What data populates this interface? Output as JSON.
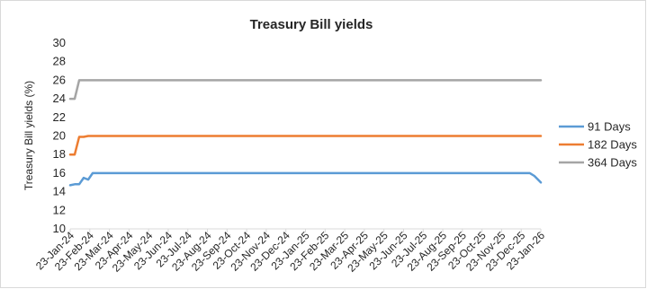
{
  "chart_data": {
    "type": "line",
    "title": "Treasury Bill yields",
    "xlabel": "",
    "ylabel": "Treasury Bill yields (%)",
    "ylim": [
      10,
      30
    ],
    "yticks": [
      10,
      12,
      14,
      16,
      18,
      20,
      22,
      24,
      26,
      28,
      30
    ],
    "x_start": "2024-01-23",
    "x_end": "2026-01-23",
    "xtick_labels": [
      "23-Jan-24",
      "23-Feb-24",
      "23-Mar-24",
      "23-Apr-24",
      "23-May-24",
      "23-Jun-24",
      "23-Jul-24",
      "23-Aug-24",
      "23-Sep-24",
      "23-Oct-24",
      "23-Nov-24",
      "23-Dec-24",
      "23-Jan-25",
      "23-Feb-25",
      "23-Mar-25",
      "23-Apr-25",
      "23-May-25",
      "23-Jun-25",
      "23-Jul-25",
      "23-Aug-25",
      "23-Sep-25",
      "23-Oct-25",
      "23-Nov-25",
      "23-Dec-25",
      "23-Jan-26"
    ],
    "grid": false,
    "legend_position": "right",
    "series": [
      {
        "name": "91 Days",
        "color": "#5b9bd5",
        "points": [
          [
            "2024-01-23",
            14.7
          ],
          [
            "2024-01-30",
            14.8
          ],
          [
            "2024-02-06",
            14.8
          ],
          [
            "2024-02-13",
            15.5
          ],
          [
            "2024-02-20",
            15.3
          ],
          [
            "2024-02-27",
            16.0
          ],
          [
            "2024-03-05",
            16.0
          ],
          [
            "2025-12-23",
            16.0
          ],
          [
            "2026-01-06",
            16.0
          ],
          [
            "2026-01-13",
            15.7
          ],
          [
            "2026-01-23",
            15.0
          ]
        ]
      },
      {
        "name": "182 Days",
        "color": "#ed7d31",
        "points": [
          [
            "2024-01-23",
            18.0
          ],
          [
            "2024-01-30",
            18.0
          ],
          [
            "2024-02-06",
            19.9
          ],
          [
            "2024-02-13",
            19.9
          ],
          [
            "2024-02-20",
            20.0
          ],
          [
            "2026-01-23",
            20.0
          ]
        ]
      },
      {
        "name": "364 Days",
        "color": "#a5a5a5",
        "points": [
          [
            "2024-01-23",
            24.0
          ],
          [
            "2024-01-30",
            24.0
          ],
          [
            "2024-02-06",
            26.0
          ],
          [
            "2026-01-23",
            26.0
          ]
        ]
      }
    ]
  }
}
